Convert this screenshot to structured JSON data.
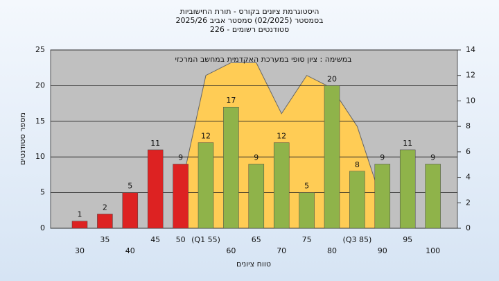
{
  "chart_data": {
    "type": "bar",
    "title": "היסטוגרמת ציונים בקורס - תורת החישוביות",
    "subtitle": [
      "בסמסטר  (02/2025)  סמסטר אביב 2025/26",
      "סטודנטים רשומים - 226"
    ],
    "annotation": "במשימה : ציון סופי במערכת האקדמית במחשב המרכזי",
    "y_label": "מספר סטודנטים",
    "x_label": "טווח ציונים",
    "categories": [
      "30",
      "35",
      "40",
      "45",
      "50",
      "(Q1 55)",
      "60",
      "65",
      "70",
      "75",
      "80",
      "(Q3 85)",
      "90",
      "95",
      "100"
    ],
    "series": [
      {
        "values": [
          1,
          2,
          5,
          11,
          9,
          12,
          17,
          9,
          12,
          5,
          20,
          8,
          9,
          11,
          9
        ],
        "colors": [
          "#dd2222",
          "#dd2222",
          "#dd2222",
          "#dd2222",
          "#dd2222",
          "#8fb34a",
          "#8fb34a",
          "#8fb34a",
          "#8fb34a",
          "#8fb34a",
          "#8fb34a",
          "#8fb34a",
          "#8fb34a",
          "#8fb34a",
          "#8fb34a"
        ]
      },
      {
        "type": "area",
        "axis": "y2",
        "color": "#ffcc55",
        "values": [
          null,
          null,
          null,
          null,
          3,
          12,
          13,
          13,
          9,
          12,
          11,
          8,
          2,
          null,
          null
        ]
      }
    ],
    "ylim": [
      0,
      25
    ],
    "yticks": [
      0,
      5,
      10,
      15,
      20,
      25
    ],
    "y2lim": [
      0,
      14
    ],
    "y2ticks": [
      0,
      2,
      4,
      6,
      8,
      10,
      12,
      14
    ],
    "grid": true
  }
}
